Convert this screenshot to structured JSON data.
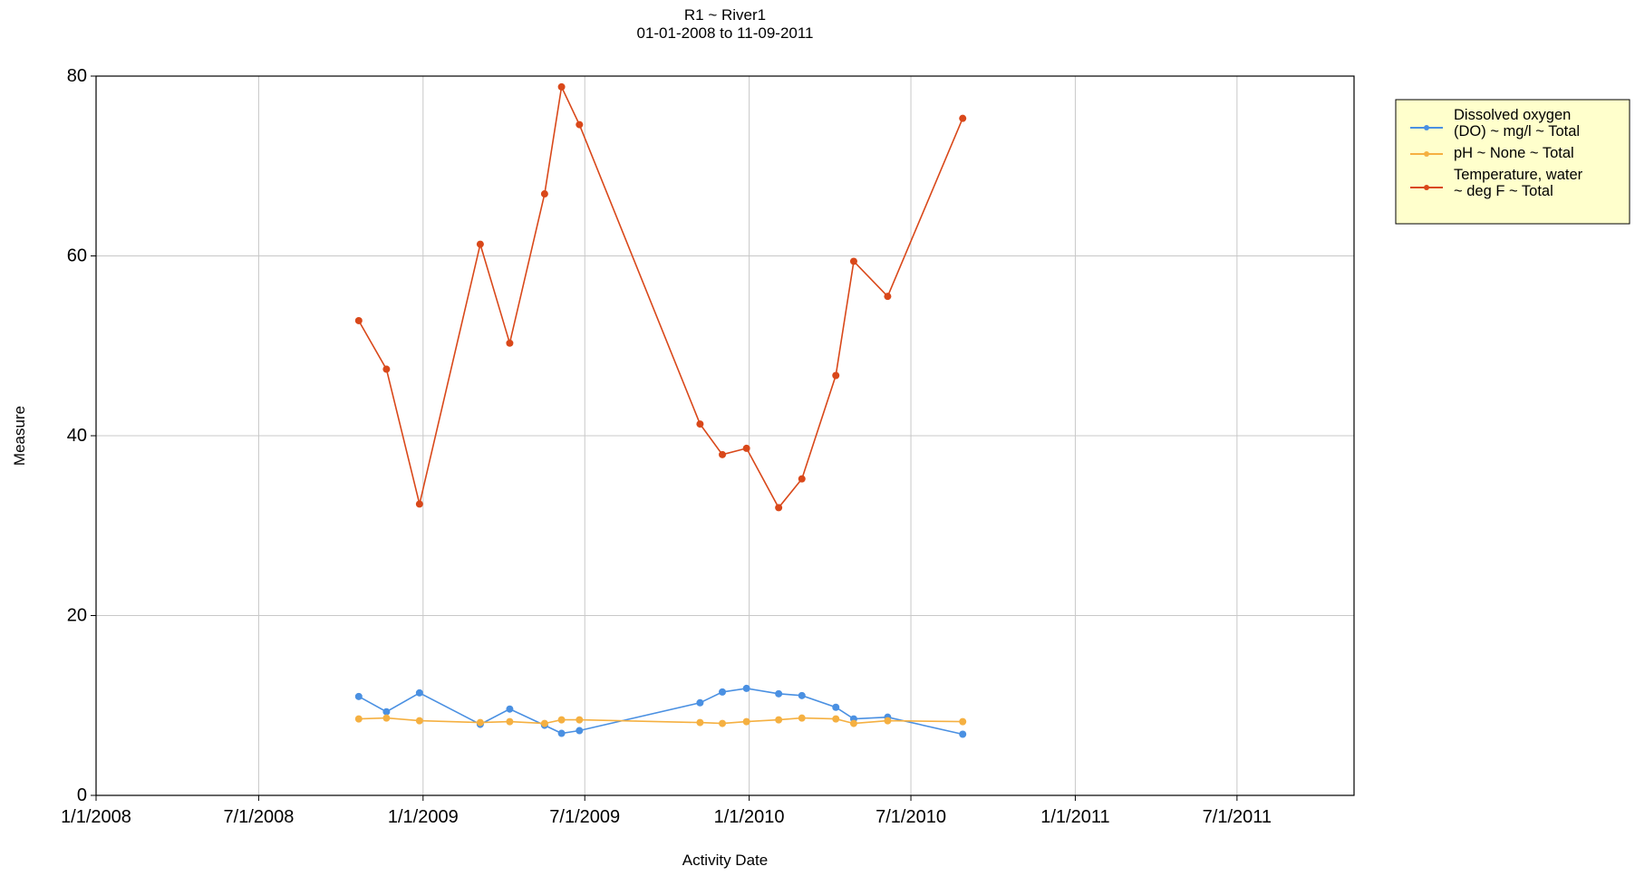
{
  "chart_data": {
    "type": "line",
    "title": "R1 ~ River1",
    "subtitle": "01-01-2008 to 11-09-2011",
    "xlabel": "Activity Date",
    "ylabel": "Measure",
    "x_axis": {
      "type": "date",
      "min": "2008-01-01",
      "max": "2011-11-09",
      "ticks": [
        "2008-01-01",
        "2008-07-01",
        "2009-01-01",
        "2009-07-01",
        "2010-01-01",
        "2010-07-01",
        "2011-01-01",
        "2011-07-01"
      ],
      "tick_labels": [
        "1/1/2008",
        "7/1/2008",
        "1/1/2009",
        "7/1/2009",
        "1/1/2010",
        "7/1/2010",
        "1/1/2011",
        "7/1/2011"
      ]
    },
    "y_axis": {
      "min": 0,
      "max": 80,
      "ticks": [
        0,
        20,
        40,
        60,
        80
      ],
      "tick_labels": [
        "0",
        "20",
        "40",
        "60",
        "80"
      ]
    },
    "grid": true,
    "legend_position": "top-right, outside plot",
    "series": [
      {
        "name": "Dissolved oxygen (DO) ~ mg/l ~ Total",
        "legend_lines": [
          "Dissolved oxygen",
          "(DO) ~ mg/l ~ Total"
        ],
        "color": "#4a90e2",
        "x": [
          "2008-10-21",
          "2008-11-21",
          "2008-12-28",
          "2009-03-06",
          "2009-04-08",
          "2009-05-17",
          "2009-06-05",
          "2009-06-25",
          "2009-11-07",
          "2009-12-02",
          "2009-12-29",
          "2010-02-03",
          "2010-03-01",
          "2010-04-08",
          "2010-04-28",
          "2010-06-05",
          "2010-08-28"
        ],
        "values": [
          11.0,
          9.3,
          11.4,
          7.9,
          9.6,
          7.8,
          6.9,
          7.2,
          10.3,
          11.5,
          11.9,
          11.3,
          11.1,
          9.8,
          8.5,
          8.7,
          6.8
        ]
      },
      {
        "name": "pH ~ None ~ Total",
        "legend_lines": [
          "pH ~ None ~ Total"
        ],
        "color": "#f5b041",
        "x": [
          "2008-10-21",
          "2008-11-21",
          "2008-12-28",
          "2009-03-06",
          "2009-04-08",
          "2009-05-17",
          "2009-06-05",
          "2009-06-25",
          "2009-11-07",
          "2009-12-02",
          "2009-12-29",
          "2010-02-03",
          "2010-03-01",
          "2010-04-08",
          "2010-04-28",
          "2010-06-05",
          "2010-08-28"
        ],
        "values": [
          8.5,
          8.6,
          8.3,
          8.1,
          8.2,
          8.0,
          8.4,
          8.4,
          8.1,
          8.0,
          8.2,
          8.4,
          8.6,
          8.5,
          8.0,
          8.3,
          8.2
        ]
      },
      {
        "name": "Temperature, water ~ deg F ~ Total",
        "legend_lines": [
          "Temperature, water",
          "~ deg F ~ Total"
        ],
        "color": "#d9481a",
        "x": [
          "2008-10-21",
          "2008-11-21",
          "2008-12-28",
          "2009-03-06",
          "2009-04-08",
          "2009-05-17",
          "2009-06-05",
          "2009-06-25",
          "2009-11-07",
          "2009-12-02",
          "2009-12-29",
          "2010-02-03",
          "2010-03-01",
          "2010-04-08",
          "2010-04-28",
          "2010-06-05",
          "2010-08-28"
        ],
        "values": [
          52.8,
          47.4,
          32.4,
          61.3,
          50.3,
          66.9,
          78.8,
          74.6,
          41.3,
          37.9,
          38.6,
          32.0,
          35.2,
          46.7,
          59.4,
          55.5,
          75.3
        ]
      }
    ]
  }
}
